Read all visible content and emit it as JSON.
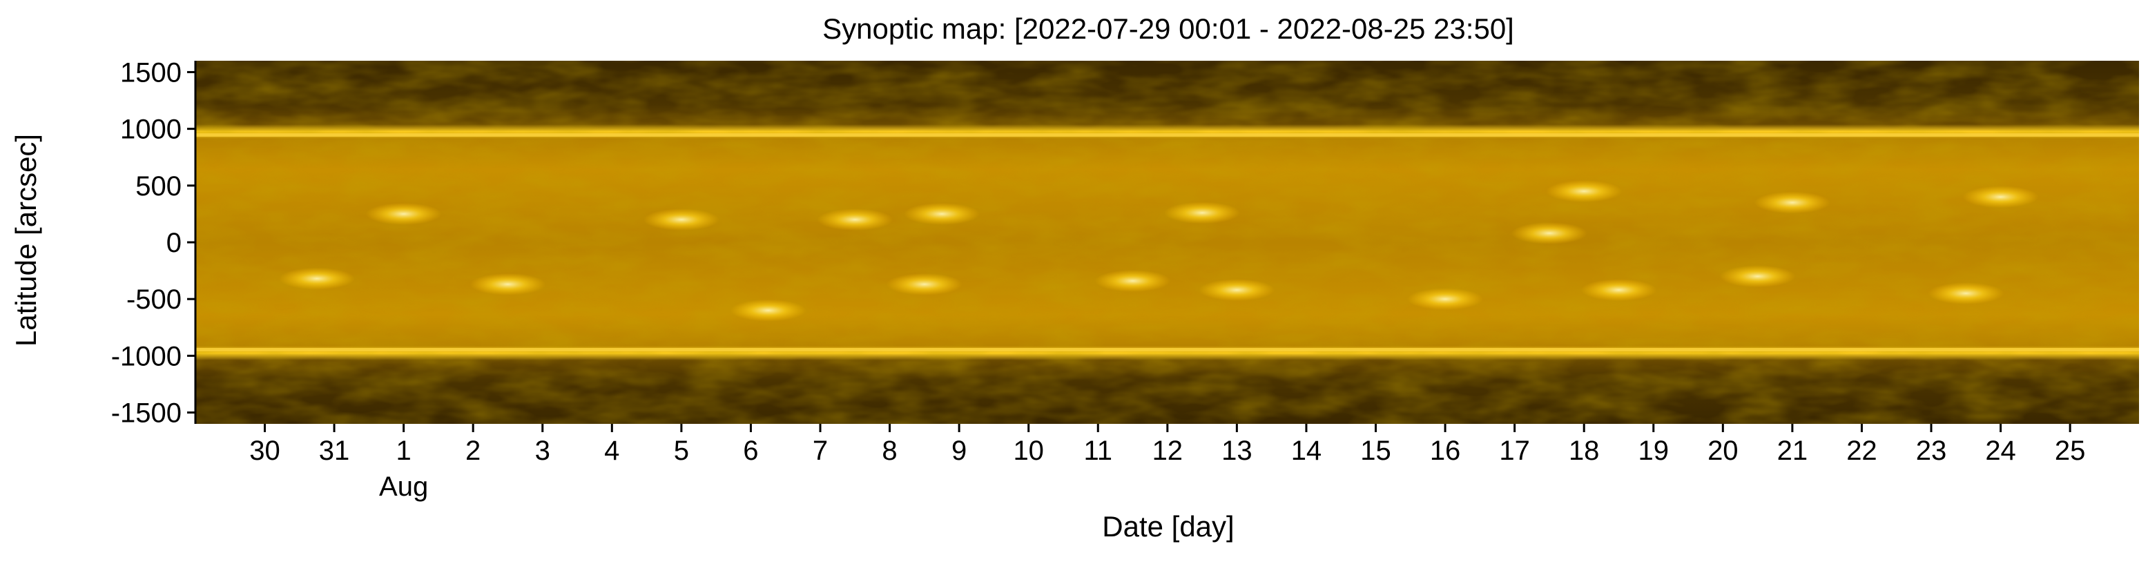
{
  "chart_data": {
    "type": "heatmap",
    "title": "Synoptic map: [2022-07-29 00:01 - 2022-08-25 23:50]",
    "xlabel": "Date [day]",
    "ylabel": "Latitude [arcsec]",
    "xlim": [
      "2022-07-29 00:01",
      "2022-08-25 23:50"
    ],
    "ylim": [
      -1600,
      1600
    ],
    "y_ticks": [
      1500,
      1000,
      500,
      0,
      -500,
      -1000,
      -1500
    ],
    "x_ticks": [
      {
        "date": "2022-07-30",
        "label": "30"
      },
      {
        "date": "2022-07-31",
        "label": "31"
      },
      {
        "date": "2022-08-01",
        "label": "1",
        "sublabel": "Aug"
      },
      {
        "date": "2022-08-02",
        "label": "2"
      },
      {
        "date": "2022-08-03",
        "label": "3"
      },
      {
        "date": "2022-08-04",
        "label": "4"
      },
      {
        "date": "2022-08-05",
        "label": "5"
      },
      {
        "date": "2022-08-06",
        "label": "6"
      },
      {
        "date": "2022-08-07",
        "label": "7"
      },
      {
        "date": "2022-08-08",
        "label": "8"
      },
      {
        "date": "2022-08-09",
        "label": "9"
      },
      {
        "date": "2022-08-10",
        "label": "10"
      },
      {
        "date": "2022-08-11",
        "label": "11"
      },
      {
        "date": "2022-08-12",
        "label": "12"
      },
      {
        "date": "2022-08-13",
        "label": "13"
      },
      {
        "date": "2022-08-14",
        "label": "14"
      },
      {
        "date": "2022-08-15",
        "label": "15"
      },
      {
        "date": "2022-08-16",
        "label": "16"
      },
      {
        "date": "2022-08-17",
        "label": "17"
      },
      {
        "date": "2022-08-18",
        "label": "18"
      },
      {
        "date": "2022-08-19",
        "label": "19"
      },
      {
        "date": "2022-08-20",
        "label": "20"
      },
      {
        "date": "2022-08-21",
        "label": "21"
      },
      {
        "date": "2022-08-22",
        "label": "22"
      },
      {
        "date": "2022-08-23",
        "label": "23"
      },
      {
        "date": "2022-08-24",
        "label": "24"
      },
      {
        "date": "2022-08-25",
        "label": "25"
      }
    ],
    "colormap": [
      "#2e1f00",
      "#5a3c00",
      "#8a5e00",
      "#b88400",
      "#dca500",
      "#f5c400",
      "#fff0a0"
    ],
    "solar_limb_latitudes": [
      945,
      -945
    ],
    "active_regions": [
      {
        "date": "2022-07-30 18:00",
        "lat": -320
      },
      {
        "date": "2022-08-01 00:00",
        "lat": 250
      },
      {
        "date": "2022-08-02 12:00",
        "lat": -370
      },
      {
        "date": "2022-08-05 00:00",
        "lat": 200
      },
      {
        "date": "2022-08-06 06:00",
        "lat": -600
      },
      {
        "date": "2022-08-07 12:00",
        "lat": 200
      },
      {
        "date": "2022-08-08 18:00",
        "lat": 250
      },
      {
        "date": "2022-08-08 12:00",
        "lat": -370
      },
      {
        "date": "2022-08-11 12:00",
        "lat": -340
      },
      {
        "date": "2022-08-12 12:00",
        "lat": 260
      },
      {
        "date": "2022-08-13 00:00",
        "lat": -420
      },
      {
        "date": "2022-08-16 00:00",
        "lat": -500
      },
      {
        "date": "2022-08-17 12:00",
        "lat": 80
      },
      {
        "date": "2022-08-18 00:00",
        "lat": 450
      },
      {
        "date": "2022-08-18 12:00",
        "lat": -420
      },
      {
        "date": "2022-08-20 12:00",
        "lat": -300
      },
      {
        "date": "2022-08-21 00:00",
        "lat": 350
      },
      {
        "date": "2022-08-23 12:00",
        "lat": -450
      },
      {
        "date": "2022-08-24 00:00",
        "lat": 400
      }
    ]
  }
}
